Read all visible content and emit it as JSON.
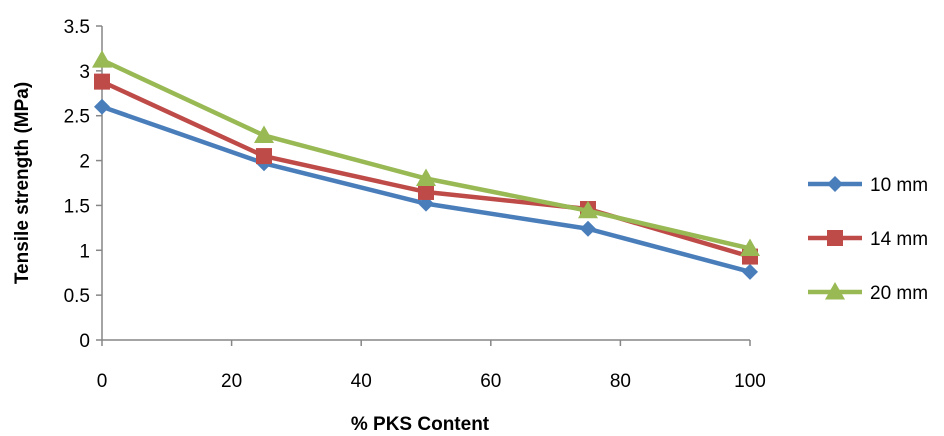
{
  "chart_data": {
    "type": "line",
    "xlabel": "% PKS Content",
    "ylabel": "Tensile strength (MPa)",
    "xlim": [
      0,
      100
    ],
    "ylim": [
      0,
      3.5
    ],
    "xticks": [
      0,
      20,
      40,
      60,
      80,
      100
    ],
    "yticks": [
      0,
      0.5,
      1,
      1.5,
      2,
      2.5,
      3,
      3.5
    ],
    "xtick_labels": [
      "0",
      "20",
      "40",
      "60",
      "80",
      "100"
    ],
    "ytick_labels": [
      "0",
      "0.5",
      "1",
      "1.5",
      "2",
      "2.5",
      "3",
      "3.5"
    ],
    "x": [
      0,
      25,
      50,
      75,
      100
    ],
    "grid": false,
    "legend_position": "right",
    "series": [
      {
        "name": "10 mm",
        "values": [
          2.6,
          1.97,
          1.52,
          1.24,
          0.76
        ],
        "color": "#4a7ebb",
        "marker": "diamond"
      },
      {
        "name": "14 mm",
        "values": [
          2.88,
          2.05,
          1.65,
          1.46,
          0.93
        ],
        "color": "#be4b48",
        "marker": "square"
      },
      {
        "name": "20 mm",
        "values": [
          3.12,
          2.28,
          1.8,
          1.44,
          1.02
        ],
        "color": "#98b954",
        "marker": "triangle"
      }
    ]
  }
}
